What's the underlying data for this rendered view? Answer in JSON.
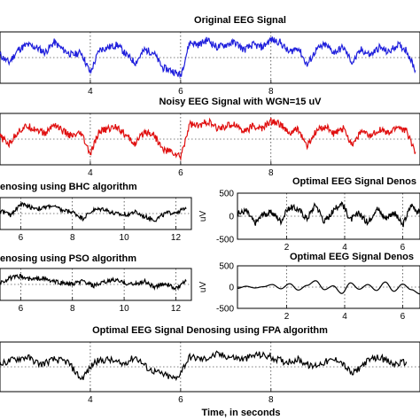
{
  "figure": {
    "xlabel": "Time, in seconds"
  },
  "chart_data": [
    {
      "id": "original",
      "type": "line",
      "title": "Original EEG Signal",
      "xlabel": "",
      "ylabel": "",
      "color": "#1f1fdc",
      "xticks": [
        "4",
        "6",
        "8"
      ],
      "xlim": [
        2,
        11.3
      ],
      "grid": true,
      "series": [
        {
          "x": [
            2,
            2.2,
            2.4,
            2.6,
            2.8,
            3,
            3.2,
            3.4,
            3.6,
            3.8,
            4,
            4.2,
            4.4,
            4.6,
            4.8,
            5,
            5.2,
            5.4,
            5.6,
            5.8,
            6,
            6.2,
            6.4,
            6.6,
            6.8,
            7,
            7.2,
            7.4,
            7.6,
            7.8,
            8,
            8.2,
            8.4,
            8.6,
            8.8,
            9,
            9.2,
            9.4,
            9.6,
            9.8,
            10,
            10.2,
            10.4,
            10.6,
            10.8,
            11,
            11.2
          ],
          "y": [
            0.1,
            -0.2,
            0.3,
            0.5,
            0.4,
            0.2,
            0.6,
            0.3,
            0.1,
            0.2,
            -0.6,
            0.3,
            0.4,
            0.5,
            0.1,
            -0.2,
            0.3,
            0.2,
            -0.4,
            -0.5,
            -0.7,
            0.6,
            0.5,
            0.7,
            0.4,
            0.5,
            0.6,
            0.3,
            0.5,
            0.4,
            0.7,
            0.6,
            0.2,
            0.4,
            -0.3,
            0.3,
            0.5,
            0.2,
            0.4,
            -0.2,
            0.3,
            0.1,
            0.4,
            0.2,
            0.5,
            0.3,
            -0.5
          ]
        }
      ]
    },
    {
      "id": "noisy",
      "type": "line",
      "title": "Noisy EEG Signal with WGN=15 uV",
      "xlabel": "",
      "ylabel": "",
      "color": "#e01010",
      "xticks": [
        "4",
        "6",
        "8"
      ],
      "xlim": [
        2,
        11.3
      ],
      "grid": true,
      "series": [
        {
          "x": [
            2,
            2.2,
            2.4,
            2.6,
            2.8,
            3,
            3.2,
            3.4,
            3.6,
            3.8,
            4,
            4.2,
            4.4,
            4.6,
            4.8,
            5,
            5.2,
            5.4,
            5.6,
            5.8,
            6,
            6.2,
            6.4,
            6.6,
            6.8,
            7,
            7.2,
            7.4,
            7.6,
            7.8,
            8,
            8.2,
            8.4,
            8.6,
            8.8,
            9,
            9.2,
            9.4,
            9.6,
            9.8,
            10,
            10.2,
            10.4,
            10.6,
            10.8,
            11,
            11.2
          ],
          "y": [
            0.1,
            -0.2,
            0.3,
            0.5,
            0.4,
            0.2,
            0.6,
            0.3,
            0.1,
            0.2,
            -0.6,
            0.3,
            0.4,
            0.5,
            0.1,
            -0.2,
            0.3,
            0.2,
            -0.4,
            -0.5,
            -0.7,
            0.6,
            0.5,
            0.7,
            0.4,
            0.5,
            0.6,
            0.3,
            0.5,
            0.4,
            0.7,
            0.6,
            0.2,
            0.4,
            -0.3,
            0.3,
            0.5,
            0.2,
            0.4,
            -0.2,
            0.3,
            0.1,
            0.4,
            0.2,
            0.5,
            0.3,
            -0.5
          ]
        }
      ]
    },
    {
      "id": "bhc",
      "type": "line",
      "title": "enosing using BHC algorithm",
      "xlabel": "",
      "ylabel": "",
      "color": "#000000",
      "xticks": [
        "6",
        "8",
        "10",
        "12"
      ],
      "xlim": [
        5.2,
        12.6
      ],
      "grid": true,
      "series": [
        {
          "x": [
            5.2,
            5.6,
            6,
            6.4,
            6.8,
            7.2,
            7.6,
            8,
            8.4,
            8.8,
            9.2,
            9.6,
            10,
            10.4,
            10.8,
            11.2,
            11.6,
            12,
            12.4
          ],
          "y": [
            0.2,
            -0.1,
            0.6,
            0.4,
            0.3,
            0.5,
            0.2,
            0.1,
            -0.3,
            0.2,
            0.3,
            0,
            -0.1,
            0.1,
            -0.2,
            -0.4,
            0,
            0.1,
            0.3
          ]
        }
      ]
    },
    {
      "id": "pso",
      "type": "line",
      "title": "enosing using PSO algorithm",
      "xlabel": "",
      "ylabel": "",
      "color": "#000000",
      "xticks": [
        "6",
        "8",
        "10",
        "12"
      ],
      "xlim": [
        5.2,
        12.6
      ],
      "grid": true,
      "series": [
        {
          "x": [
            5.2,
            5.6,
            6,
            6.4,
            6.8,
            7.2,
            7.6,
            8,
            8.4,
            8.8,
            9.2,
            9.6,
            10,
            10.4,
            10.8,
            11.2,
            11.6,
            12,
            12.4
          ],
          "y": [
            0.1,
            0.4,
            0.5,
            0.3,
            0.4,
            0.2,
            0.1,
            0,
            0.2,
            -0.1,
            0.1,
            0.3,
            0.1,
            0,
            0.2,
            -0.2,
            0.1,
            -0.3,
            0.2
          ]
        }
      ]
    },
    {
      "id": "opt1",
      "type": "line",
      "title": "Optimal EEG Signal Denos",
      "xlabel": "",
      "ylabel": "uV",
      "color": "#000000",
      "xticks": [
        "2",
        "4",
        "6"
      ],
      "yticks": [
        "500",
        "0",
        "-500"
      ],
      "ylim": [
        -500,
        500
      ],
      "xlim": [
        0.3,
        6.6
      ],
      "grid": true,
      "series": [
        {
          "x": [
            0.3,
            0.6,
            0.9,
            1.2,
            1.5,
            1.8,
            2.1,
            2.4,
            2.7,
            3,
            3.3,
            3.6,
            3.9,
            4.2,
            4.5,
            4.8,
            5.1,
            5.4,
            5.7,
            6,
            6.3,
            6.6
          ],
          "y": [
            50,
            120,
            -150,
            40,
            80,
            -100,
            200,
            150,
            -50,
            260,
            -120,
            100,
            300,
            -80,
            60,
            -150,
            180,
            -40,
            90,
            -200,
            250,
            60
          ]
        }
      ]
    },
    {
      "id": "opt2",
      "type": "line",
      "title": "Optimal EEG Signal Denos",
      "xlabel": "",
      "ylabel": "uV",
      "color": "#000000",
      "xticks": [
        "2",
        "4",
        "6"
      ],
      "yticks": [
        "500",
        "0",
        "-500"
      ],
      "ylim": [
        -500,
        500
      ],
      "xlim": [
        0.3,
        6.6
      ],
      "grid": true,
      "series": [
        {
          "x": [
            0.3,
            0.6,
            0.9,
            1.2,
            1.5,
            1.8,
            2.1,
            2.4,
            2.7,
            3,
            3.3,
            3.6,
            3.9,
            4.2,
            4.5,
            4.8,
            5.1,
            5.4,
            5.7,
            6,
            6.3,
            6.6
          ],
          "y": [
            -30,
            20,
            -20,
            10,
            60,
            -40,
            80,
            -70,
            40,
            150,
            -60,
            30,
            -150,
            100,
            -50,
            60,
            -80,
            120,
            -100,
            70,
            -60,
            -160
          ]
        }
      ]
    },
    {
      "id": "fpa",
      "type": "line",
      "title": "Optimal EEG Signal Denosing using FPA algorithm",
      "xlabel": "Time, in seconds",
      "ylabel": "",
      "color": "#000000",
      "xticks": [
        "4",
        "6",
        "8"
      ],
      "xlim": [
        2,
        11.3
      ],
      "grid": true,
      "series": [
        {
          "x": [
            2,
            2.3,
            2.6,
            2.9,
            3.2,
            3.5,
            3.8,
            4.1,
            4.4,
            4.7,
            5,
            5.3,
            5.6,
            5.9,
            6.2,
            6.5,
            6.8,
            7.1,
            7.4,
            7.7,
            8,
            8.3,
            8.6,
            8.9,
            9.2,
            9.5,
            9.8,
            10.1,
            10.4,
            10.7,
            11
          ],
          "y": [
            0.1,
            0.3,
            0.4,
            0.1,
            0.3,
            0.2,
            -0.5,
            0.2,
            0.3,
            0.1,
            0.4,
            -0.1,
            -0.3,
            -0.5,
            0.4,
            0.3,
            0.5,
            0.4,
            0.3,
            0.5,
            0.4,
            0.2,
            0.3,
            0,
            0.2,
            0.3,
            -0.3,
            0.2,
            0.4,
            0.1,
            0.2
          ]
        }
      ]
    }
  ]
}
